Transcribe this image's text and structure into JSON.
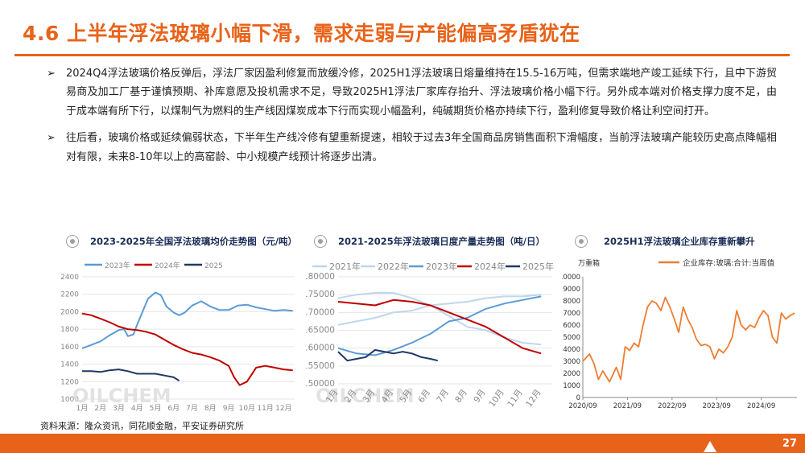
{
  "header": {
    "title": "4.6 上半年浮法玻璃小幅下滑，需求走弱与产能偏高矛盾犹在"
  },
  "bullets": [
    {
      "marker": "➢",
      "text": "2024Q4浮法玻璃价格反弹后，浮法厂家因盈利修复而放缓冷修，2025H1浮法玻璃日熔量维持在15.5-16万吨，但需求端地产竣工延续下行，且中下游贸易商及加工厂基于谨慎预期、补库意愿及投机需求不足，导致2025H1浮法厂家库存抬升、浮法玻璃价格小幅下行。另外成本端对价格支撑力度不足，由于成本端有所下行，以煤制气为燃料的生产线因煤炭成本下行而实现小幅盈利，纯碱期货价格亦持续下行，盈利修复导致价格让利空间打开。"
    },
    {
      "marker": "➢",
      "text": "往后看，玻璃价格或延续偏弱状态，下半年生产线冷修有望重新提速，相较于过去3年全国商品房销售面积下滑幅度，当前浮法玻璃产能较历史高点降幅相对有限，未来8-10年以上的高窑龄、中小规模产线预计将逐步出清。"
    }
  ],
  "colors": {
    "accent": "#E8631A",
    "title_dark": "#1a2d57",
    "s2021": "#BDD7EE",
    "s2022": "#BDD7EE",
    "s2023": "#5B9BD5",
    "s2024": "#C00000",
    "s2025": "#1F3864",
    "inventory": "#ED7D31"
  },
  "watermark": "OILCHEM",
  "source": "资料来源：隆众资讯，同花顺金融，平安证券研究所",
  "page_number": "27",
  "chart_data": [
    {
      "type": "line",
      "title": "2023-2025年全国浮法玻璃均价走势图（元/吨）",
      "legend": [
        "2023年",
        "2024年",
        "2025"
      ],
      "legend_position": "top",
      "categories": [
        "1月",
        "2月",
        "3月",
        "4月",
        "5月",
        "6月",
        "7月",
        "8月",
        "9月",
        "10月",
        "11月",
        "12月"
      ],
      "ylim": [
        1000,
        2400
      ],
      "yticks": [
        "1000",
        "1200",
        "1400",
        "1600",
        "1800",
        "2000",
        "2200",
        "2400"
      ],
      "grid": "horizontal",
      "series": [
        {
          "name": "2023年",
          "color": "#5B9BD5",
          "x": [
            1,
            1.5,
            2,
            2.5,
            3,
            3.3,
            3.5,
            3.8,
            4,
            4.3,
            4.6,
            5,
            5.3,
            5.6,
            6,
            6.3,
            6.6,
            7,
            7.5,
            8,
            8.5,
            9,
            9.5,
            10,
            10.5,
            11,
            11.5,
            12,
            12.5
          ],
          "values": [
            1580,
            1620,
            1660,
            1730,
            1790,
            1800,
            1720,
            1740,
            1850,
            2000,
            2150,
            2220,
            2190,
            2060,
            1990,
            1960,
            1990,
            2070,
            2120,
            2060,
            2020,
            2020,
            2070,
            2080,
            2050,
            2030,
            2010,
            2020,
            2010
          ]
        },
        {
          "name": "2024年",
          "color": "#C00000",
          "x": [
            1,
            1.5,
            2,
            2.5,
            3,
            3.5,
            4,
            4.5,
            5,
            5.5,
            6,
            6.5,
            7,
            7.5,
            8,
            8.5,
            9,
            9.3,
            9.6,
            10,
            10.5,
            11,
            11.5,
            12,
            12.5
          ],
          "values": [
            1980,
            1960,
            1920,
            1880,
            1830,
            1800,
            1790,
            1770,
            1740,
            1680,
            1620,
            1570,
            1530,
            1510,
            1480,
            1440,
            1380,
            1250,
            1160,
            1200,
            1360,
            1380,
            1360,
            1340,
            1330
          ]
        },
        {
          "name": "2025",
          "color": "#1F3864",
          "x": [
            1,
            1.5,
            2,
            2.5,
            3,
            3.5,
            4,
            4.5,
            5,
            5.5,
            6,
            6.3
          ],
          "values": [
            1320,
            1320,
            1310,
            1330,
            1340,
            1320,
            1290,
            1290,
            1290,
            1270,
            1250,
            1210
          ]
        }
      ]
    },
    {
      "type": "line",
      "title": "2021-2025年浮法玻璃日度产量走势图（吨/日）",
      "legend": [
        "2021年",
        "2022年",
        "2023年",
        "2024年",
        "2025年"
      ],
      "legend_position": "top",
      "categories": [
        "1月",
        "2月",
        "3月",
        "4月",
        "5月",
        "6月",
        "7月",
        "8月",
        "9月",
        "10月",
        "11月",
        "12月"
      ],
      "ylim": [
        150000,
        180000
      ],
      "yticks": [
        "150000",
        "155000",
        "160000",
        "165000",
        "170000",
        "175000",
        "180000"
      ],
      "grid": "horizontal",
      "series": [
        {
          "name": "2021年",
          "color": "#BDD7EE",
          "x": [
            1,
            2,
            3,
            4,
            5,
            6,
            7,
            8,
            9,
            10,
            11,
            12
          ],
          "values": [
            166500,
            167500,
            168500,
            170000,
            170500,
            172000,
            172500,
            173000,
            174000,
            174500,
            174500,
            175000
          ]
        },
        {
          "name": "2022年",
          "color": "#BDD7EE",
          "x": [
            1,
            2,
            3,
            4,
            5,
            6,
            7,
            8,
            9,
            10,
            11,
            12
          ],
          "values": [
            174000,
            175000,
            175500,
            175500,
            174000,
            172000,
            169000,
            166000,
            165000,
            163000,
            161500,
            161000
          ]
        },
        {
          "name": "2023年",
          "color": "#5B9BD5",
          "x": [
            1,
            2,
            3,
            4,
            5,
            6,
            7,
            8,
            9,
            10,
            11,
            12
          ],
          "values": [
            160000,
            158500,
            158000,
            159500,
            161500,
            164000,
            167500,
            168500,
            171000,
            172500,
            173500,
            174500
          ]
        },
        {
          "name": "2024年",
          "color": "#C00000",
          "x": [
            1,
            2,
            3,
            4,
            5,
            6,
            7,
            8,
            9,
            10,
            11,
            12
          ],
          "values": [
            173000,
            172500,
            172000,
            173500,
            173000,
            172000,
            170000,
            168000,
            166000,
            163000,
            160000,
            158500
          ]
        },
        {
          "name": "2025年",
          "color": "#1F3864",
          "x": [
            1,
            1.5,
            2,
            2.5,
            3,
            3.5,
            4,
            4.5,
            5,
            5.5,
            6,
            6.4
          ],
          "values": [
            159000,
            156500,
            157000,
            157500,
            159500,
            159000,
            158500,
            159000,
            158500,
            157500,
            157000,
            156500
          ]
        }
      ]
    },
    {
      "type": "line",
      "title": "2025H1浮法玻璃企业库存重新攀升",
      "ylabel": "万重箱",
      "legend": [
        "企业库存:玻璃:合计:当周值"
      ],
      "legend_position": "top",
      "ylim": [
        0,
        10000
      ],
      "yticks": [
        "0",
        "1000",
        "2000",
        "3000",
        "4000",
        "5000",
        "6000",
        "7000",
        "8000",
        "9000",
        "10000"
      ],
      "xticks": [
        "2020/09",
        "2021/09",
        "2022/09",
        "2023/09",
        "2024/09"
      ],
      "grid": "none",
      "series": [
        {
          "name": "企业库存:玻璃:合计:当周值",
          "color": "#ED7D31",
          "x": [
            2020.75,
            2020.9,
            2021.0,
            2021.1,
            2021.2,
            2021.35,
            2021.5,
            2021.6,
            2021.7,
            2021.8,
            2021.9,
            2022.0,
            2022.1,
            2022.2,
            2022.3,
            2022.4,
            2022.5,
            2022.6,
            2022.7,
            2022.8,
            2022.9,
            2023.0,
            2023.1,
            2023.2,
            2023.3,
            2023.4,
            2023.5,
            2023.6,
            2023.7,
            2023.8,
            2023.9,
            2024.0,
            2024.1,
            2024.2,
            2024.3,
            2024.4,
            2024.5,
            2024.6,
            2024.7,
            2024.8,
            2024.9,
            2025.0,
            2025.1,
            2025.2,
            2025.3,
            2025.4,
            2025.5
          ],
          "values": [
            3000,
            3600,
            2800,
            1500,
            2200,
            1300,
            2500,
            1500,
            4200,
            3900,
            4500,
            4200,
            6000,
            7500,
            8000,
            7800,
            7200,
            8300,
            7500,
            6500,
            5400,
            7500,
            6500,
            5800,
            4800,
            4300,
            4400,
            4200,
            3200,
            4000,
            3700,
            4200,
            5000,
            7200,
            6000,
            5600,
            6000,
            5800,
            6600,
            7200,
            6800,
            5000,
            4500,
            7000,
            6500,
            6800,
            7000
          ]
        }
      ]
    }
  ]
}
